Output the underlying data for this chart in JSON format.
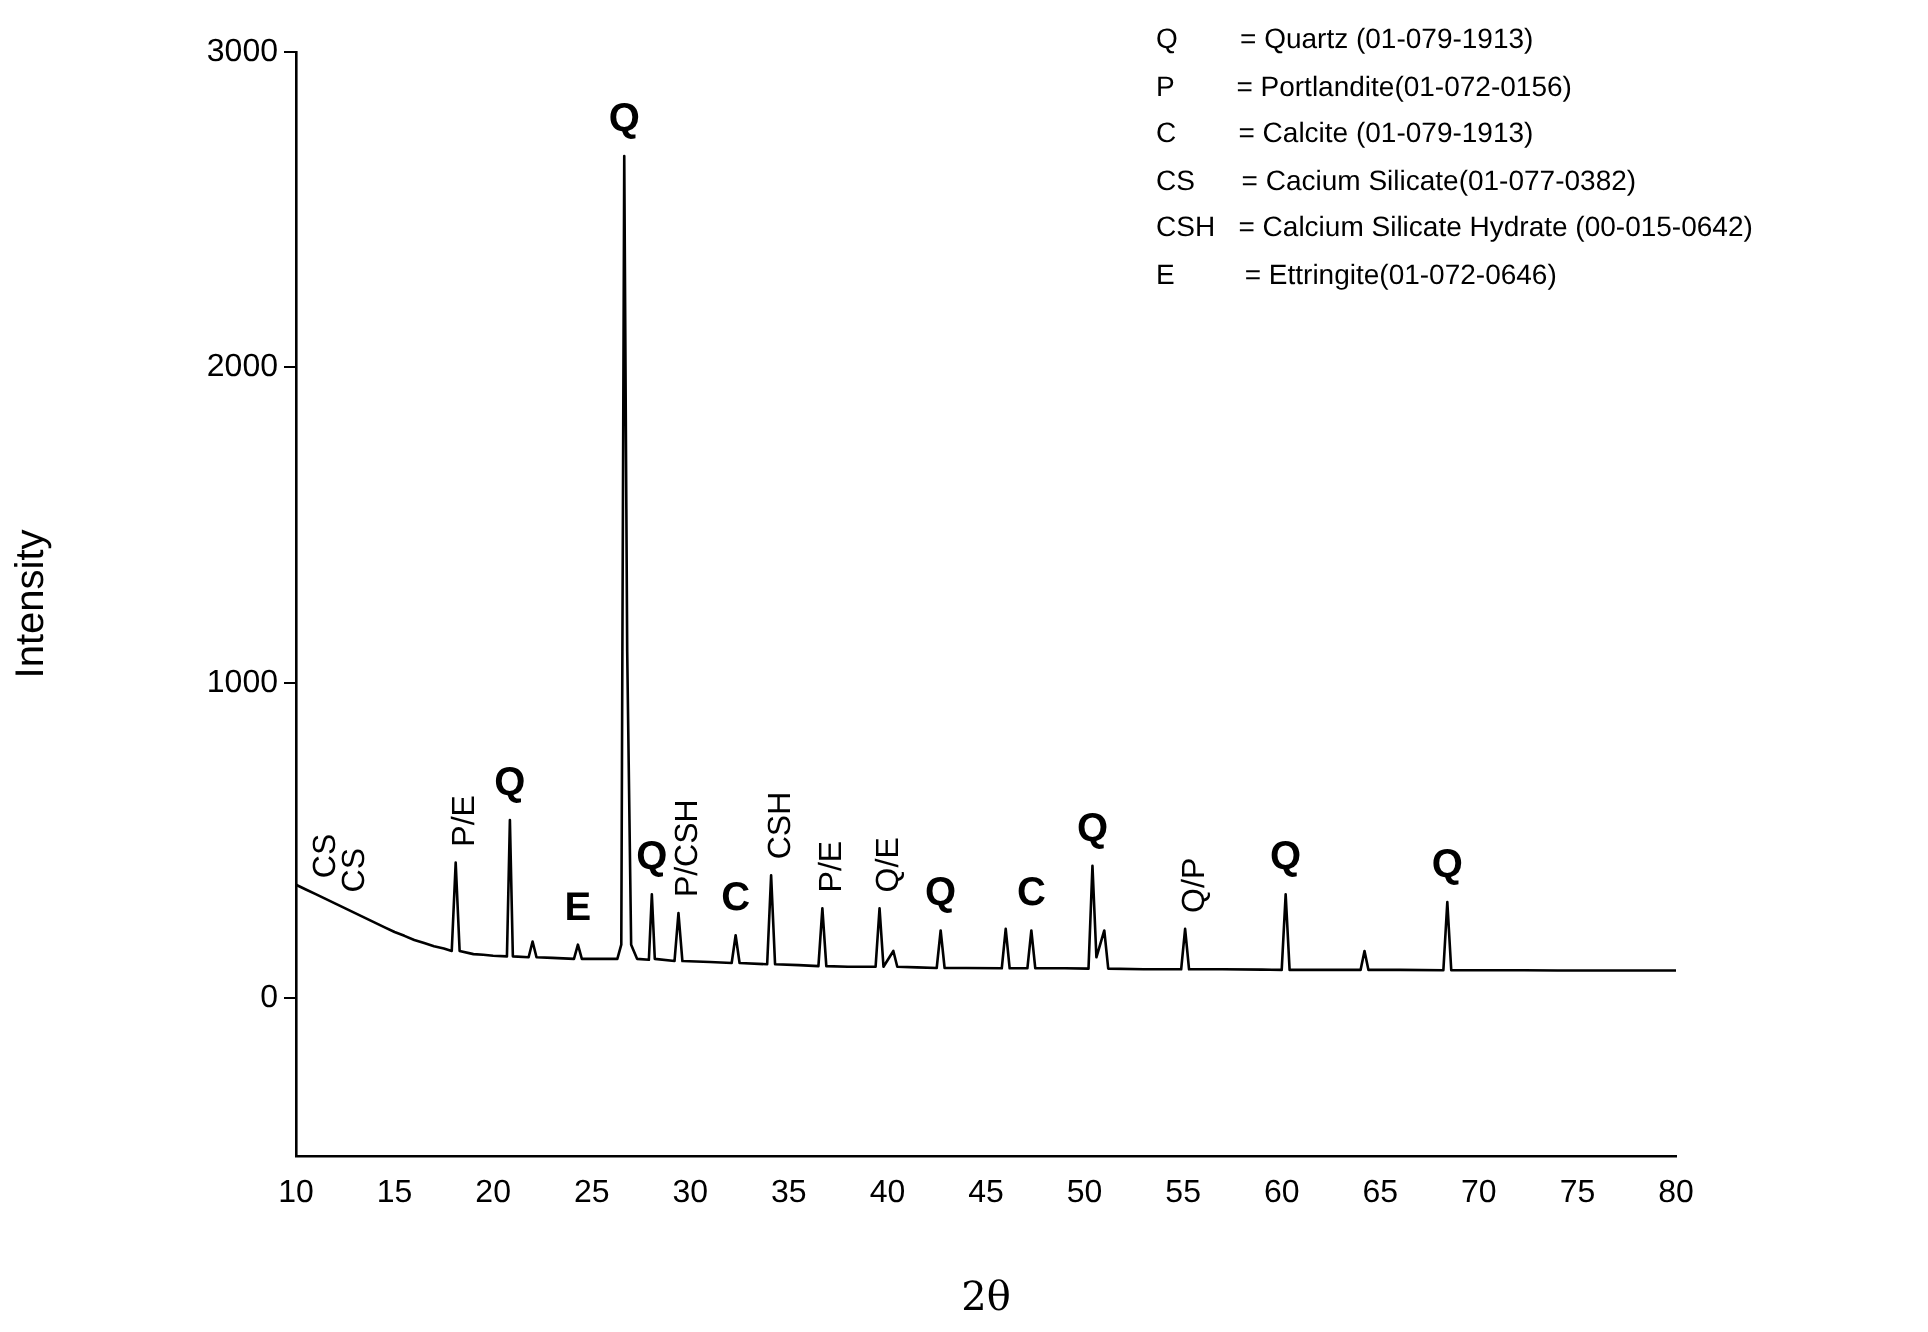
{
  "chart_data": {
    "type": "line",
    "xlabel": "2θ",
    "ylabel": "Intensity",
    "xlim": [
      10,
      80
    ],
    "xticks": [
      10,
      15,
      20,
      25,
      30,
      35,
      40,
      45,
      50,
      55,
      60,
      65,
      70,
      75,
      80
    ],
    "ylim": [
      -500,
      3000
    ],
    "yticks": [
      0,
      1000,
      2000,
      3000
    ],
    "grid": false,
    "legend": false,
    "marker": "none",
    "line_style": "solid",
    "series": [
      {
        "color": "#000000",
        "x": [
          10,
          10.5,
          11,
          11.5,
          12,
          12.5,
          13,
          13.5,
          14,
          14.5,
          15,
          15.5,
          16,
          16.5,
          17,
          17.5,
          17.9,
          18.1,
          18.3,
          19,
          19.5,
          20,
          20.7,
          20.85,
          21,
          21.8,
          22,
          22.2,
          23,
          24.1,
          24.3,
          24.5,
          25.5,
          26.3,
          26.5,
          26.65,
          26.8,
          27,
          27.3,
          27.9,
          28.05,
          28.2,
          29.2,
          29.4,
          29.6,
          31,
          32.1,
          32.3,
          32.5,
          33.9,
          34.1,
          34.3,
          35.5,
          36.5,
          36.7,
          36.9,
          38,
          39.4,
          39.6,
          39.8,
          40.3,
          40.5,
          41.5,
          42.5,
          42.7,
          42.9,
          44,
          45.8,
          46,
          46.2,
          47.1,
          47.3,
          47.5,
          49,
          50.2,
          50.4,
          50.6,
          51,
          51.2,
          53,
          54.9,
          55.1,
          55.3,
          57,
          59,
          60,
          60.2,
          60.4,
          61,
          62,
          64,
          64.2,
          64.4,
          66,
          68.2,
          68.4,
          68.6,
          70,
          72,
          74,
          76,
          78,
          80
        ],
        "values": [
          360,
          345,
          330,
          315,
          300,
          285,
          270,
          255,
          240,
          225,
          210,
          198,
          185,
          175,
          165,
          158,
          150,
          430,
          150,
          140,
          138,
          135,
          133,
          565,
          133,
          130,
          180,
          130,
          128,
          125,
          170,
          125,
          125,
          125,
          170,
          2670,
          1100,
          170,
          125,
          122,
          330,
          125,
          118,
          270,
          118,
          115,
          112,
          200,
          112,
          108,
          390,
          108,
          105,
          102,
          285,
          102,
          100,
          100,
          285,
          100,
          150,
          100,
          98,
          96,
          215,
          96,
          96,
          95,
          220,
          95,
          95,
          215,
          95,
          95,
          94,
          420,
          130,
          215,
          94,
          92,
          92,
          220,
          92,
          92,
          91,
          90,
          330,
          90,
          90,
          90,
          90,
          150,
          90,
          90,
          89,
          305,
          89,
          89,
          89,
          88,
          88,
          88,
          88
        ]
      }
    ],
    "annotations": [
      {
        "text": "CS",
        "x": 11,
        "y": 330
      },
      {
        "text": "CS",
        "x": 12.5,
        "y": 285
      },
      {
        "text": "P/E",
        "x": 18.1,
        "y": 430
      },
      {
        "text": "Q",
        "x": 20.85,
        "y": 565
      },
      {
        "text": "E",
        "x": 24.3,
        "y": 170
      },
      {
        "text": "Q",
        "x": 26.65,
        "y": 2670
      },
      {
        "text": "Q",
        "x": 28.05,
        "y": 330
      },
      {
        "text": "P/CSH",
        "x": 29.4,
        "y": 270
      },
      {
        "text": "C",
        "x": 32.3,
        "y": 200
      },
      {
        "text": "CSH",
        "x": 34.1,
        "y": 390
      },
      {
        "text": "P/E",
        "x": 36.7,
        "y": 285
      },
      {
        "text": "Q/E",
        "x": 39.6,
        "y": 285
      },
      {
        "text": "Q",
        "x": 42.7,
        "y": 215
      },
      {
        "text": "C",
        "x": 47.3,
        "y": 215
      },
      {
        "text": "Q",
        "x": 50.4,
        "y": 420
      },
      {
        "text": "Q/P",
        "x": 55.1,
        "y": 220
      },
      {
        "text": "Q",
        "x": 60.2,
        "y": 330
      },
      {
        "text": "Q",
        "x": 68.4,
        "y": 305
      },
      "Q        = Quartz (01-079-1913)",
      "P        = Portlandite(01-072-0156)",
      "C        = Calcite (01-079-1913)",
      "CS      = Cacium Silicate(01-077-0382)",
      "CSH   = Calcium Silicate Hydrate (00-015-0642)",
      "E         = Ettringite(01-072-0646)"
    ]
  }
}
